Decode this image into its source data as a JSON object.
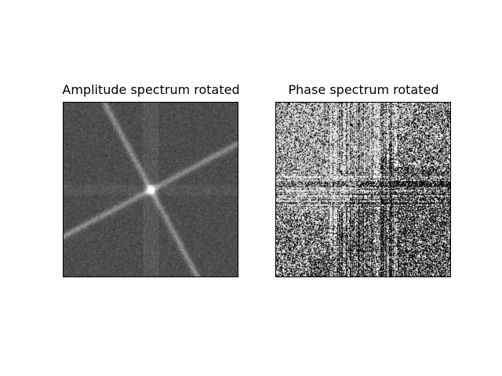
{
  "figure": {
    "panels": [
      {
        "title": "Amplitude spectrum rotated",
        "kind": "amplitude"
      },
      {
        "title": "Phase spectrum rotated",
        "kind": "phase"
      }
    ],
    "colormap": "gray"
  }
}
